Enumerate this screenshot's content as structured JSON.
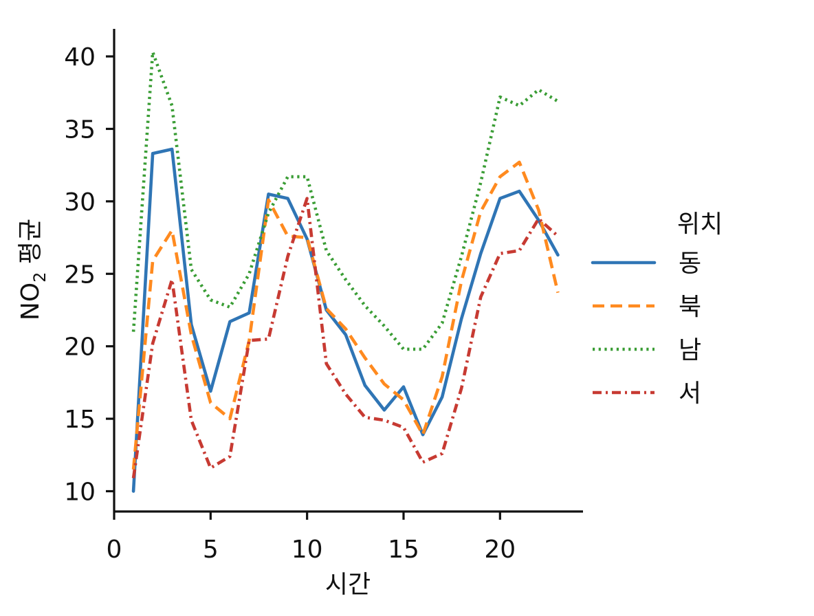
{
  "chart_data": {
    "type": "line",
    "xlabel": "시간",
    "ylabel": {
      "main": "NO",
      "sub": "2",
      "suffix": " 평균"
    },
    "xlim": [
      0,
      24.3
    ],
    "ylim": [
      8.6,
      41.9
    ],
    "xticks": [
      0,
      5,
      10,
      15,
      20
    ],
    "yticks": [
      10,
      15,
      20,
      25,
      30,
      35,
      40
    ],
    "grid": false,
    "legend": {
      "title": "위치",
      "placement": "right"
    },
    "x": [
      1,
      2,
      3,
      4,
      5,
      6,
      7,
      8,
      9,
      10,
      11,
      12,
      13,
      14,
      15,
      16,
      17,
      18,
      19,
      20,
      21,
      22,
      23
    ],
    "series": [
      {
        "name": "동",
        "color": "#2f75b5",
        "dash": "solid",
        "values": [
          10.0,
          33.3,
          33.6,
          21.5,
          16.9,
          21.7,
          22.3,
          30.5,
          30.2,
          27.4,
          22.5,
          20.8,
          17.3,
          15.6,
          17.2,
          13.9,
          16.5,
          21.9,
          26.4,
          30.2,
          30.7,
          28.7,
          26.3
        ]
      },
      {
        "name": "북",
        "color": "#ff8a1f",
        "dash": "dashed",
        "values": [
          11.5,
          25.9,
          28.0,
          20.8,
          16.1,
          15.0,
          20.4,
          30.1,
          27.6,
          27.5,
          22.6,
          21.2,
          19.2,
          17.4,
          16.3,
          13.9,
          17.9,
          24.5,
          29.3,
          31.7,
          32.7,
          29.4,
          23.7
        ]
      },
      {
        "name": "남",
        "color": "#3a9d35",
        "dash": "dotted",
        "values": [
          21.0,
          40.3,
          36.6,
          25.3,
          23.2,
          22.7,
          25.0,
          29.2,
          31.7,
          31.7,
          26.6,
          24.6,
          22.8,
          21.4,
          19.8,
          19.8,
          21.6,
          26.2,
          31.3,
          37.2,
          36.6,
          37.7,
          36.9
        ]
      },
      {
        "name": "서",
        "color": "#c73a32",
        "dash": "dashdot",
        "values": [
          10.9,
          20.2,
          24.6,
          14.9,
          11.6,
          12.4,
          20.4,
          20.5,
          26.2,
          30.2,
          18.8,
          16.7,
          15.1,
          14.9,
          14.4,
          12.0,
          12.6,
          17.1,
          23.4,
          26.4,
          26.6,
          28.8,
          27.6
        ]
      }
    ]
  }
}
